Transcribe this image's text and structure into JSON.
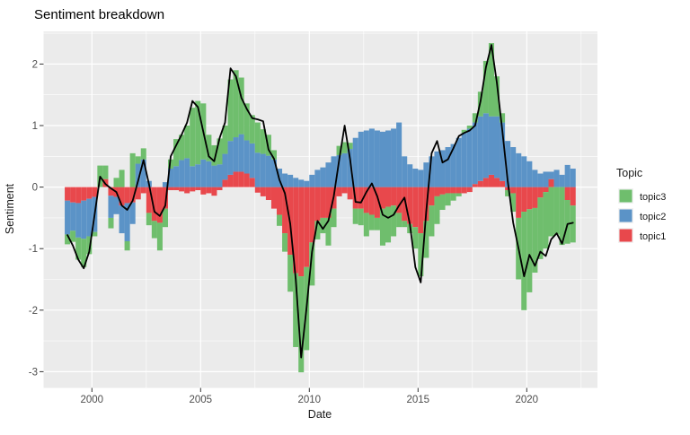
{
  "title": "Sentiment breakdown",
  "chart_data": {
    "type": "bar",
    "subtype": "stacked-bar-with-line-overlay",
    "title": "Sentiment breakdown",
    "xlabel": "Date",
    "ylabel": "Sentiment",
    "x_ticks": [
      2000,
      2005,
      2010,
      2015,
      2020
    ],
    "y_ticks": [
      2,
      1,
      0,
      -1,
      -2,
      -3
    ],
    "xlim": [
      1997.8,
      2023.2
    ],
    "ylim": [
      -3.26,
      2.53
    ],
    "grid": "on",
    "panel_bg": "#EBEBEB",
    "grid_color": "#FFFFFF",
    "line_color": "#000000",
    "legend": {
      "title": "Topic",
      "position": "right",
      "entries": [
        {
          "label": "topic3",
          "color": "#6FBE6D"
        },
        {
          "label": "topic2",
          "color": "#5B93C7"
        },
        {
          "label": "topic1",
          "color": "#E8484C"
        }
      ]
    },
    "bar_width_years": 0.25,
    "columns": [
      "quarter",
      "topic1",
      "topic2",
      "topic3",
      "line"
    ],
    "rows": [
      [
        "1998-Q4",
        -0.22,
        -0.55,
        -0.16,
        -0.78
      ],
      [
        "1999-Q1",
        -0.25,
        -0.46,
        -0.18,
        -0.95
      ],
      [
        "1999-Q2",
        -0.26,
        -0.56,
        -0.36,
        -1.18
      ],
      [
        "1999-Q3",
        -0.22,
        -0.62,
        -0.46,
        -1.32
      ],
      [
        "1999-Q4",
        -0.19,
        -0.61,
        -0.29,
        -1.05
      ],
      [
        "2000-Q1",
        -0.16,
        -0.57,
        -0.07,
        -0.45
      ],
      [
        "2000-Q2",
        0,
        0,
        0.35,
        0.17
      ],
      [
        "2000-Q3",
        0.13,
        0,
        0.22,
        0.05
      ],
      [
        "2000-Q4",
        -0.14,
        -0.36,
        -0.17,
        -0.02
      ],
      [
        "2001-Q1",
        -0.16,
        -0.28,
        0.15,
        -0.08
      ],
      [
        "2001-Q2",
        -0.3,
        -0.45,
        0.28,
        -0.3
      ],
      [
        "2001-Q3",
        -0.26,
        -0.62,
        -0.15,
        -0.37
      ],
      [
        "2001-Q4",
        -0.25,
        -0.35,
        0.55,
        -0.22
      ],
      [
        "2002-Q1",
        -0.2,
        0.38,
        0.12,
        0.1
      ],
      [
        "2002-Q2",
        -0.1,
        0.45,
        0.18,
        0.44
      ],
      [
        "2002-Q3",
        -0.42,
        0.1,
        -0.2,
        0.05
      ],
      [
        "2002-Q4",
        -0.55,
        0,
        -0.28,
        -0.4
      ],
      [
        "2003-Q1",
        -0.58,
        0,
        -0.45,
        -0.47
      ],
      [
        "2003-Q2",
        -0.35,
        0.08,
        -0.3,
        -0.3
      ],
      [
        "2003-Q3",
        -0.05,
        0.3,
        0.15,
        0.5
      ],
      [
        "2003-Q4",
        -0.05,
        0.34,
        0.44,
        0.68
      ],
      [
        "2004-Q1",
        -0.07,
        0.44,
        0.41,
        0.85
      ],
      [
        "2004-Q2",
        -0.1,
        0.47,
        0.53,
        1.05
      ],
      [
        "2004-Q3",
        -0.07,
        0.34,
        0.95,
        1.4
      ],
      [
        "2004-Q4",
        -0.05,
        0.37,
        1.03,
        1.3
      ],
      [
        "2005-Q1",
        -0.12,
        0.45,
        0.91,
        0.9
      ],
      [
        "2005-Q2",
        -0.1,
        0.42,
        0.43,
        0.5
      ],
      [
        "2005-Q3",
        -0.14,
        0.35,
        0.33,
        0.42
      ],
      [
        "2005-Q4",
        -0.05,
        0.37,
        0.42,
        0.8
      ],
      [
        "2006-Q1",
        0.12,
        0.42,
        0.46,
        1.05
      ],
      [
        "2006-Q2",
        0.2,
        0.55,
        1.0,
        1.93
      ],
      [
        "2006-Q3",
        0.25,
        0.56,
        1.09,
        1.8
      ],
      [
        "2006-Q4",
        0.25,
        0.61,
        0.92,
        1.45
      ],
      [
        "2007-Q1",
        0.22,
        0.54,
        0.6,
        1.27
      ],
      [
        "2007-Q2",
        0.15,
        0.56,
        0.46,
        1.12
      ],
      [
        "2007-Q3",
        -0.09,
        0.56,
        0.49,
        1.1
      ],
      [
        "2007-Q4",
        -0.15,
        0.54,
        0.4,
        1.07
      ],
      [
        "2008-Q1",
        -0.21,
        0.51,
        0.34,
        0.61
      ],
      [
        "2008-Q2",
        -0.35,
        0.45,
        0.15,
        0.46
      ],
      [
        "2008-Q3",
        -0.45,
        0.3,
        -0.18,
        0.12
      ],
      [
        "2008-Q4",
        -0.75,
        0.22,
        -0.3,
        -0.1
      ],
      [
        "2009-Q1",
        -1.1,
        0.2,
        -0.6,
        -0.6
      ],
      [
        "2009-Q2",
        -1.4,
        0.15,
        -1.2,
        -1.5
      ],
      [
        "2009-Q3",
        -1.45,
        0.12,
        -1.56,
        -2.77
      ],
      [
        "2009-Q4",
        -1.3,
        0.1,
        -1.35,
        -1.95
      ],
      [
        "2010-Q1",
        -0.9,
        0.2,
        -0.7,
        -1.05
      ],
      [
        "2010-Q2",
        -0.55,
        0.28,
        -0.3,
        -0.55
      ],
      [
        "2010-Q3",
        -0.5,
        0.32,
        -0.25,
        -0.68
      ],
      [
        "2010-Q4",
        -0.5,
        0.4,
        -0.45,
        -0.55
      ],
      [
        "2011-Q1",
        -0.35,
        0.5,
        -0.3,
        -0.15
      ],
      [
        "2011-Q2",
        -0.15,
        0.52,
        0.15,
        0.45
      ],
      [
        "2011-Q3",
        -0.1,
        0.55,
        0.18,
        1.0
      ],
      [
        "2011-Q4",
        -0.2,
        0.62,
        0.1,
        0.45
      ],
      [
        "2012-Q1",
        -0.35,
        0.8,
        -0.25,
        -0.24
      ],
      [
        "2012-Q2",
        -0.35,
        0.9,
        -0.27,
        -0.25
      ],
      [
        "2012-Q3",
        -0.42,
        0.92,
        -0.38,
        -0.08
      ],
      [
        "2012-Q4",
        -0.45,
        0.95,
        -0.25,
        0.06
      ],
      [
        "2013-Q1",
        -0.5,
        0.92,
        -0.2,
        -0.15
      ],
      [
        "2013-Q2",
        -0.35,
        0.9,
        -0.6,
        -0.45
      ],
      [
        "2013-Q3",
        -0.32,
        0.92,
        -0.58,
        -0.5
      ],
      [
        "2013-Q4",
        -0.3,
        0.95,
        -0.5,
        -0.45
      ],
      [
        "2014-Q1",
        -0.42,
        1.05,
        -0.23,
        -0.3
      ],
      [
        "2014-Q2",
        -0.55,
        0.5,
        -0.1,
        -0.17
      ],
      [
        "2014-Q3",
        -0.6,
        0.37,
        -0.15,
        -0.6
      ],
      [
        "2014-Q4",
        -0.65,
        0.3,
        -0.35,
        -1.3
      ],
      [
        "2015-Q1",
        -0.75,
        0.28,
        -0.7,
        -1.55
      ],
      [
        "2015-Q2",
        -0.55,
        0.4,
        -0.6,
        -0.4
      ],
      [
        "2015-Q3",
        -0.3,
        0.5,
        -0.5,
        0.55
      ],
      [
        "2015-Q4",
        -0.15,
        0.58,
        -0.45,
        0.75
      ],
      [
        "2016-Q1",
        -0.12,
        0.6,
        -0.25,
        0.4
      ],
      [
        "2016-Q2",
        -0.1,
        0.65,
        -0.2,
        0.45
      ],
      [
        "2016-Q3",
        -0.1,
        0.7,
        -0.12,
        0.63
      ],
      [
        "2016-Q4",
        -0.1,
        0.8,
        -0.05,
        0.83
      ],
      [
        "2017-Q1",
        -0.1,
        0.88,
        0.05,
        0.88
      ],
      [
        "2017-Q2",
        -0.08,
        0.95,
        0.05,
        0.92
      ],
      [
        "2017-Q3",
        0.05,
        1.0,
        0.15,
        1.0
      ],
      [
        "2017-Q4",
        0.1,
        1.05,
        0.4,
        1.4
      ],
      [
        "2018-Q1",
        0.15,
        1.05,
        0.85,
        1.95
      ],
      [
        "2018-Q2",
        0.2,
        0.95,
        1.19,
        2.31
      ],
      [
        "2018-Q3",
        0.15,
        1.0,
        0.65,
        1.7
      ],
      [
        "2018-Q4",
        0.1,
        0.95,
        0.15,
        0.92
      ],
      [
        "2019-Q1",
        -0.05,
        0.75,
        -0.1,
        0.1
      ],
      [
        "2019-Q2",
        -0.1,
        0.65,
        -0.3,
        -0.58
      ],
      [
        "2019-Q3",
        -0.5,
        0.55,
        -1.0,
        -1.0
      ],
      [
        "2019-Q4",
        -0.4,
        0.5,
        -1.6,
        -1.45
      ],
      [
        "2020-Q1",
        -0.36,
        0.42,
        -1.35,
        -1.1
      ],
      [
        "2020-Q2",
        -0.34,
        0.28,
        -1.05,
        -1.28
      ],
      [
        "2020-Q3",
        -0.17,
        0.22,
        -1.0,
        -1.05
      ],
      [
        "2020-Q4",
        -0.08,
        0.25,
        -0.92,
        -1.12
      ],
      [
        "2021-Q1",
        0.13,
        0.12,
        -0.8,
        -0.85
      ],
      [
        "2021-Q2",
        0,
        0.28,
        -0.77,
        -0.75
      ],
      [
        "2021-Q3",
        0,
        0.2,
        -0.94,
        -0.92
      ],
      [
        "2021-Q4",
        -0.21,
        0.36,
        -0.71,
        -0.6
      ],
      [
        "2022-Q1",
        -0.3,
        0.3,
        -0.6,
        -0.58
      ]
    ]
  }
}
